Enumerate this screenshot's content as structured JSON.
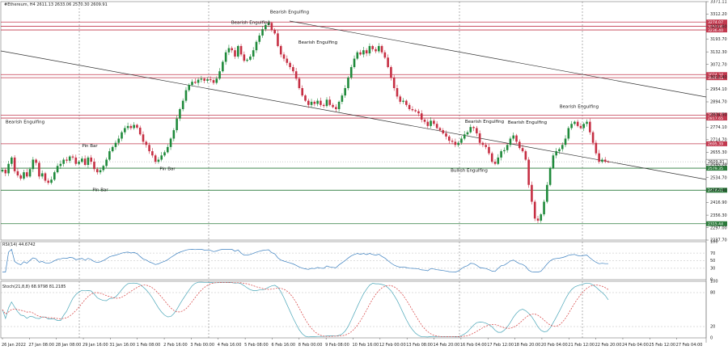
{
  "chart_data": {
    "type": "candlestick",
    "header": "#Ethereum, H4  2611.13 2633.06 2570.30 2609.91",
    "colors": {
      "bull": "#1f8a3b",
      "bear": "#c62f43",
      "level_red": "#c2384e",
      "level_green": "#2a7a3a",
      "trend": "#333333",
      "rsi": "#3a7fbf",
      "stoch_main": "#4aa6b8",
      "stoch_signal": "#d63b3b",
      "grid": "#bbbbbb"
    },
    "price_axis": {
      "ylim": [
        2237.7,
        3371.11
      ],
      "ticks": [
        "3371.11",
        "3312.20",
        "3253.60",
        "3193.70",
        "3132.30",
        "3072.70",
        "3013.40",
        "2954.10",
        "2894.70",
        "2834.50",
        "2774.10",
        "2714.70",
        "2655.30",
        "2595.20",
        "2534.70",
        "2475.40",
        "2416.90",
        "2356.30",
        "2297.00",
        "2237.70"
      ]
    },
    "levels": [
      {
        "price": 3274.07,
        "label": "3274.07",
        "color": "red"
      },
      {
        "price": 3253.6,
        "label": "3253.60",
        "color": "red"
      },
      {
        "price": 3236.4,
        "label": "3236.40",
        "color": "red"
      },
      {
        "price": 3024.34,
        "label": "3024.34",
        "color": "red"
      },
      {
        "price": 3009.43,
        "label": "3009.43",
        "color": "red"
      },
      {
        "price": 2831.37,
        "label": "2831.37",
        "color": "red"
      },
      {
        "price": 2817.65,
        "label": "2817.65",
        "color": "red"
      },
      {
        "price": 2695.39,
        "label": "2695.39",
        "color": "red"
      },
      {
        "price": 2579.35,
        "label": "2579.35",
        "color": "green"
      },
      {
        "price": 2474.63,
        "label": "2474.63",
        "color": "green"
      },
      {
        "price": 2315.44,
        "label": "2315.44",
        "color": "green"
      }
    ],
    "current_price": "2609.91",
    "time_labels": [
      "26 Jan 2022",
      "27 Jan 08:00",
      "28 Jan 08:00",
      "29 Jan 16:00",
      "31 Jan 16:00",
      "1 Feb 08:00",
      "2 Feb 16:00",
      "3 Feb 00:00",
      "4 Feb 16:00",
      "5 Feb 08:00",
      "6 Feb 16:00",
      "8 Feb 00:00",
      "9 Feb 08:00",
      "10 Feb 16:00",
      "12 Feb 00:00",
      "13 Feb 08:00",
      "14 Feb 20:00",
      "16 Feb 04:00",
      "17 Feb 12:00",
      "18 Feb 20:00",
      "20 Feb 04:00",
      "21 Feb 12:00",
      "22 Feb 20:00",
      "24 Feb 04:00",
      "25 Feb 12:00",
      "27 Feb 04:00"
    ],
    "annotations": [
      {
        "text": "Bearish Engulfing",
        "x": 31,
        "price": 2793
      },
      {
        "text": "Pin Bar",
        "x": 111,
        "price": 2680
      },
      {
        "text": "Pin Bar",
        "x": 124,
        "price": 2470
      },
      {
        "text": "Pin Bar",
        "x": 207,
        "price": 2570
      },
      {
        "text": "Bearish Engulfing",
        "x": 310,
        "price": 3265
      },
      {
        "text": "Bearish Engulfing",
        "x": 358,
        "price": 3315
      },
      {
        "text": "Bearish Engulfing",
        "x": 393,
        "price": 3172
      },
      {
        "text": "Bearish Engulfing",
        "x": 599,
        "price": 2795
      },
      {
        "text": "Bearish Engulfing",
        "x": 652,
        "price": 2791
      },
      {
        "text": "Bearish Engulfing",
        "x": 716,
        "price": 2865
      },
      {
        "text": "Bullish Engulfing",
        "x": 580,
        "price": 2563
      }
    ],
    "candles_close": [
      2572,
      2555,
      2600,
      2630,
      2565,
      2545,
      2530,
      2560,
      2540,
      2575,
      2620,
      2605,
      2540,
      2555,
      2520,
      2510,
      2525,
      2560,
      2590,
      2600,
      2620,
      2615,
      2635,
      2630,
      2600,
      2610,
      2625,
      2595,
      2630,
      2610,
      2575,
      2560,
      2570,
      2590,
      2620,
      2660,
      2680,
      2700,
      2720,
      2750,
      2770,
      2780,
      2770,
      2785,
      2772,
      2740,
      2705,
      2690,
      2660,
      2640,
      2610,
      2620,
      2640,
      2655,
      2680,
      2720,
      2760,
      2815,
      2860,
      2900,
      2950,
      2975,
      2990,
      2985,
      3000,
      3005,
      2995,
      3002,
      2998,
      2985,
      3005,
      3040,
      3085,
      3130,
      3150,
      3140,
      3110,
      3160,
      3120,
      3090,
      3095,
      3110,
      3140,
      3180,
      3210,
      3240,
      3260,
      3270,
      3235,
      3220,
      3160,
      3120,
      3100,
      3080,
      3060,
      3040,
      3005,
      2960,
      2925,
      2900,
      2880,
      2895,
      2885,
      2900,
      2880,
      2875,
      2905,
      2880,
      2870,
      2860,
      2895,
      2925,
      2960,
      3010,
      3060,
      3100,
      3130,
      3120,
      3140,
      3125,
      3160,
      3145,
      3135,
      3160,
      3130,
      3105,
      3060,
      3010,
      2960,
      2920,
      2895,
      2900,
      2880,
      2860,
      2855,
      2850,
      2840,
      2810,
      2800,
      2780,
      2805,
      2790,
      2770,
      2760,
      2745,
      2730,
      2710,
      2705,
      2690,
      2700,
      2720,
      2740,
      2750,
      2775,
      2770,
      2745,
      2700,
      2690,
      2680,
      2650,
      2610,
      2600,
      2630,
      2660,
      2665,
      2690,
      2720,
      2735,
      2705,
      2675,
      2660,
      2620,
      2500,
      2420,
      2340,
      2330,
      2360,
      2420,
      2500,
      2580,
      2640,
      2660,
      2670,
      2690,
      2720,
      2770,
      2790,
      2800,
      2780,
      2770,
      2790,
      2800,
      2750,
      2700,
      2650,
      2610,
      2620,
      2610,
      2609.91
    ],
    "rsi": {
      "label": "RSI(14) 44.6742",
      "ylim": [
        0,
        100
      ],
      "levels": [
        70,
        50,
        30
      ],
      "tick_labels": [
        "100",
        "70",
        "50",
        "30",
        "0"
      ]
    },
    "stoch": {
      "label": "Stoch(21,8,8) 68.9798 81.2185",
      "ylim": [
        0,
        100
      ],
      "levels": [
        80,
        20
      ],
      "tick_labels": [
        "100",
        "80",
        "20",
        "0"
      ]
    }
  }
}
